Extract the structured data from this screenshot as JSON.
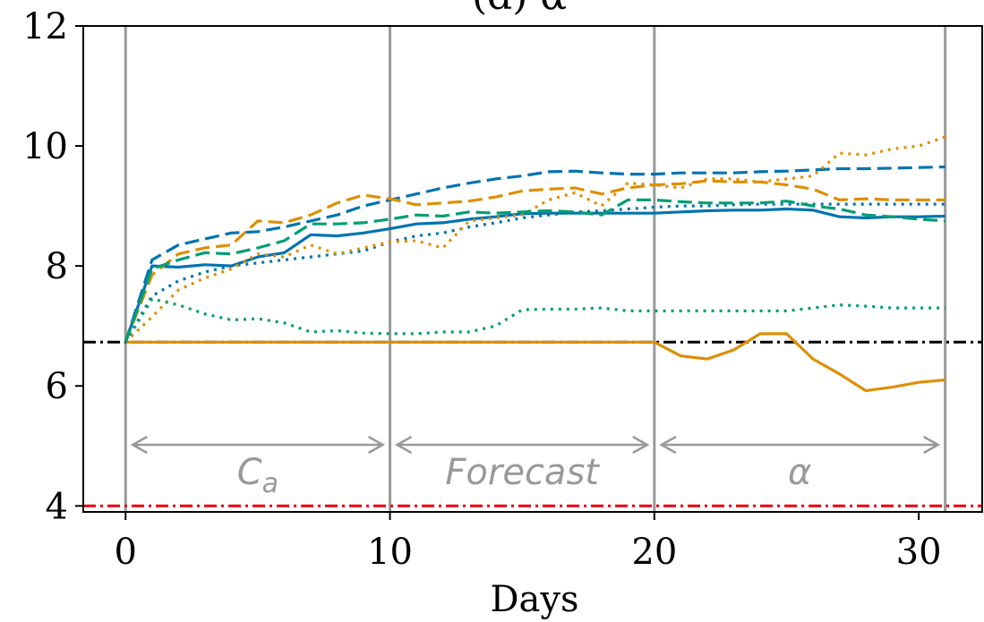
{
  "chart_data": {
    "type": "line",
    "title": "(d) α",
    "xlabel": "Days",
    "ylabel": "",
    "xlim": [
      -1.6,
      32.4
    ],
    "ylim": [
      3.9,
      12.0
    ],
    "xticks": [
      0,
      10,
      20,
      30
    ],
    "yticks": [
      4,
      6,
      8,
      10,
      12
    ],
    "vlines": [
      0,
      10,
      20,
      31
    ],
    "hlines": [
      {
        "y": 6.73,
        "color": "#000000",
        "style": "dashdot"
      },
      {
        "y": 4.0,
        "color": "#e8000b",
        "style": "dashdot"
      }
    ],
    "phases": [
      {
        "label": "C",
        "subscript": "a",
        "from": 0,
        "to": 10
      },
      {
        "label": "Forecast",
        "subscript": "",
        "from": 10,
        "to": 20
      },
      {
        "label": "α",
        "subscript": "",
        "from": 20,
        "to": 31
      }
    ],
    "series": [
      {
        "color": "#0173b2",
        "style": "solid",
        "x": [
          0,
          1,
          2,
          3,
          4,
          5,
          6,
          7,
          8,
          9,
          10,
          11,
          12,
          13,
          14,
          15,
          16,
          17,
          18,
          19,
          20,
          21,
          22,
          23,
          24,
          25,
          26,
          27,
          28,
          29,
          30,
          31
        ],
        "values": [
          6.73,
          8.0,
          7.98,
          8.02,
          8.0,
          8.15,
          8.22,
          8.52,
          8.5,
          8.55,
          8.62,
          8.7,
          8.72,
          8.78,
          8.82,
          8.87,
          8.88,
          8.88,
          8.88,
          8.88,
          8.88,
          8.9,
          8.92,
          8.93,
          8.93,
          8.95,
          8.93,
          8.82,
          8.8,
          8.82,
          8.82,
          8.83
        ]
      },
      {
        "color": "#0173b2",
        "style": "dashed",
        "x": [
          0,
          1,
          2,
          3,
          4,
          5,
          6,
          7,
          8,
          9,
          10,
          11,
          12,
          13,
          14,
          15,
          16,
          17,
          18,
          19,
          20,
          21,
          22,
          23,
          24,
          25,
          26,
          27,
          28,
          29,
          30,
          31
        ],
        "values": [
          6.73,
          8.1,
          8.35,
          8.45,
          8.55,
          8.57,
          8.65,
          8.75,
          8.85,
          9.0,
          9.1,
          9.2,
          9.3,
          9.38,
          9.45,
          9.5,
          9.57,
          9.58,
          9.55,
          9.53,
          9.53,
          9.55,
          9.55,
          9.55,
          9.57,
          9.58,
          9.6,
          9.62,
          9.62,
          9.63,
          9.64,
          9.65
        ]
      },
      {
        "color": "#0173b2",
        "style": "dotted",
        "x": [
          0,
          1,
          2,
          3,
          4,
          5,
          6,
          7,
          8,
          9,
          10,
          11,
          12,
          13,
          14,
          15,
          16,
          17,
          18,
          19,
          20,
          21,
          22,
          23,
          24,
          25,
          26,
          27,
          28,
          29,
          30,
          31
        ],
        "values": [
          6.73,
          7.5,
          7.75,
          7.9,
          8.0,
          8.05,
          8.1,
          8.15,
          8.2,
          8.25,
          8.4,
          8.5,
          8.55,
          8.65,
          8.72,
          8.8,
          8.85,
          8.9,
          8.92,
          8.95,
          8.98,
          9.0,
          9.0,
          9.02,
          9.03,
          9.03,
          9.03,
          9.03,
          9.03,
          9.03,
          9.03,
          9.03
        ]
      },
      {
        "color": "#de8f05",
        "style": "solid",
        "x": [
          0,
          1,
          2,
          3,
          4,
          5,
          6,
          7,
          8,
          9,
          10,
          11,
          12,
          13,
          14,
          15,
          16,
          17,
          18,
          19,
          20,
          21,
          22,
          23,
          24,
          25,
          26,
          27,
          28,
          29,
          30,
          31
        ],
        "values": [
          6.73,
          6.73,
          6.73,
          6.73,
          6.73,
          6.73,
          6.73,
          6.73,
          6.73,
          6.73,
          6.73,
          6.73,
          6.73,
          6.73,
          6.73,
          6.73,
          6.73,
          6.73,
          6.73,
          6.73,
          6.73,
          6.5,
          6.45,
          6.6,
          6.87,
          6.87,
          6.45,
          6.2,
          5.92,
          5.98,
          6.06,
          6.1
        ]
      },
      {
        "color": "#de8f05",
        "style": "dashed",
        "x": [
          0,
          1,
          2,
          3,
          4,
          5,
          6,
          7,
          8,
          9,
          10,
          11,
          12,
          13,
          14,
          15,
          16,
          17,
          18,
          19,
          20,
          21,
          22,
          23,
          24,
          25,
          26,
          27,
          28,
          29,
          30,
          31
        ],
        "values": [
          6.73,
          7.85,
          8.2,
          8.3,
          8.35,
          8.75,
          8.72,
          8.85,
          9.05,
          9.18,
          9.12,
          9.02,
          9.05,
          9.08,
          9.15,
          9.25,
          9.28,
          9.3,
          9.2,
          9.3,
          9.35,
          9.37,
          9.42,
          9.4,
          9.4,
          9.35,
          9.28,
          9.1,
          9.12,
          9.1,
          9.1,
          9.1
        ]
      },
      {
        "color": "#de8f05",
        "style": "dotted",
        "x": [
          0,
          1,
          2,
          3,
          4,
          5,
          6,
          7,
          8,
          9,
          10,
          11,
          12,
          13,
          14,
          15,
          16,
          17,
          18,
          19,
          20,
          21,
          22,
          23,
          24,
          25,
          26,
          27,
          28,
          29,
          30,
          31
        ],
        "values": [
          6.73,
          7.15,
          7.6,
          7.8,
          7.95,
          8.2,
          8.15,
          8.35,
          8.2,
          8.3,
          8.4,
          8.42,
          8.3,
          8.75,
          8.8,
          8.85,
          9.1,
          9.22,
          9.0,
          9.38,
          9.35,
          9.3,
          9.45,
          9.45,
          9.4,
          9.45,
          9.5,
          9.88,
          9.85,
          9.95,
          10.0,
          10.15
        ]
      },
      {
        "color": "#029e73",
        "style": "dashed",
        "x": [
          0,
          1,
          2,
          3,
          4,
          5,
          6,
          7,
          8,
          9,
          10,
          11,
          12,
          13,
          14,
          15,
          16,
          17,
          18,
          19,
          20,
          21,
          22,
          23,
          24,
          25,
          26,
          27,
          28,
          29,
          30,
          31
        ],
        "values": [
          6.73,
          7.95,
          8.1,
          8.22,
          8.2,
          8.3,
          8.42,
          8.7,
          8.7,
          8.72,
          8.78,
          8.85,
          8.83,
          8.9,
          8.88,
          8.9,
          8.92,
          8.9,
          8.85,
          9.1,
          9.1,
          9.07,
          9.05,
          9.05,
          9.05,
          9.08,
          9.0,
          8.95,
          8.85,
          8.82,
          8.78,
          8.75
        ]
      },
      {
        "color": "#029e73",
        "style": "dotted",
        "x": [
          0,
          1,
          2,
          3,
          4,
          5,
          6,
          7,
          8,
          9,
          10,
          11,
          12,
          13,
          14,
          15,
          16,
          17,
          18,
          19,
          20,
          21,
          22,
          23,
          24,
          25,
          26,
          27,
          28,
          29,
          30,
          31
        ],
        "values": [
          6.73,
          7.45,
          7.35,
          7.2,
          7.1,
          7.12,
          7.05,
          6.9,
          6.92,
          6.88,
          6.87,
          6.87,
          6.9,
          6.9,
          7.0,
          7.27,
          7.28,
          7.28,
          7.3,
          7.25,
          7.25,
          7.25,
          7.25,
          7.25,
          7.25,
          7.25,
          7.3,
          7.35,
          7.33,
          7.3,
          7.3,
          7.3
        ]
      }
    ]
  }
}
